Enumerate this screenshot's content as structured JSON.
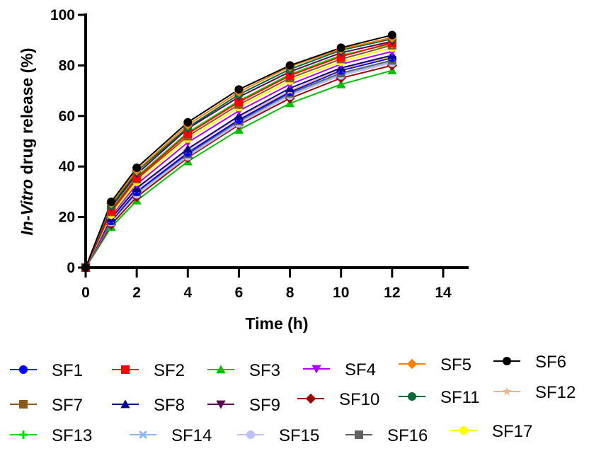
{
  "chart_data": {
    "type": "line",
    "title": "",
    "xlabel": "Time (h)",
    "ylabel_italic": "In-Vitro",
    "ylabel_rest": " drug release (%)",
    "ylabel": "In-Vitro drug release (%)",
    "x": [
      0,
      1,
      2,
      4,
      6,
      8,
      10,
      12
    ],
    "xlim": [
      0,
      15
    ],
    "ylim": [
      0,
      100
    ],
    "xticks": [
      0,
      2,
      4,
      6,
      8,
      10,
      12,
      14
    ],
    "yticks": [
      0,
      20,
      40,
      60,
      80,
      100
    ],
    "grid": false,
    "legend_position": "bottom",
    "series": [
      {
        "name": "SF1",
        "color": "#0000ff",
        "marker": "circle",
        "values": [
          0,
          18.5,
          30,
          45.5,
          58.5,
          69.5,
          78,
          83
        ]
      },
      {
        "name": "SF2",
        "color": "#ff0000",
        "marker": "square",
        "values": [
          0,
          22.5,
          35.5,
          53,
          65.5,
          76,
          83.5,
          89
        ]
      },
      {
        "name": "SF3",
        "color": "#00c000",
        "marker": "triangle-up",
        "values": [
          0,
          16,
          26.5,
          42,
          54.5,
          65,
          72.5,
          78
        ]
      },
      {
        "name": "SF4",
        "color": "#b000ff",
        "marker": "triangle-down",
        "values": [
          0,
          20.5,
          33,
          49.5,
          62,
          72.5,
          80.5,
          85.5
        ]
      },
      {
        "name": "SF5",
        "color": "#ff8000",
        "marker": "diamond",
        "values": [
          0,
          25.5,
          38.5,
          56.5,
          69.5,
          79.5,
          86.5,
          91
        ]
      },
      {
        "name": "SF6",
        "color": "#000000",
        "marker": "circle",
        "values": [
          0,
          26,
          39.5,
          57.5,
          70.5,
          80,
          87,
          92
        ]
      },
      {
        "name": "SF7",
        "color": "#8b5a1a",
        "marker": "square",
        "values": [
          0,
          22,
          35,
          52,
          64.5,
          75,
          82.5,
          88
        ]
      },
      {
        "name": "SF8",
        "color": "#00008b",
        "marker": "triangle-up",
        "values": [
          0,
          19.5,
          31.5,
          47,
          60,
          71,
          79,
          84
        ]
      },
      {
        "name": "SF9",
        "color": "#5a0050",
        "marker": "triangle-down",
        "values": [
          0,
          24,
          37,
          55,
          67.5,
          77.5,
          85,
          89.5
        ]
      },
      {
        "name": "SF10",
        "color": "#a00000",
        "marker": "diamond",
        "values": [
          0,
          17,
          28,
          43.5,
          56.5,
          67,
          75,
          80
        ]
      },
      {
        "name": "SF11",
        "color": "#006a3a",
        "marker": "circle",
        "values": [
          0,
          24.5,
          38,
          55.5,
          68.5,
          78.5,
          86,
          90.5
        ]
      },
      {
        "name": "SF12",
        "color": "#f0b48c",
        "marker": "star",
        "values": [
          0,
          19,
          31,
          46.5,
          59.5,
          70,
          78.5,
          83.5
        ]
      },
      {
        "name": "SF13",
        "color": "#00e000",
        "marker": "plus",
        "values": [
          0,
          23,
          36,
          53.5,
          66,
          76.5,
          84,
          88.5
        ]
      },
      {
        "name": "SF14",
        "color": "#90b8f0",
        "marker": "cross",
        "values": [
          0,
          18,
          29.5,
          44.5,
          57.5,
          68.5,
          76.5,
          81.5
        ]
      },
      {
        "name": "SF15",
        "color": "#c0c0f8",
        "marker": "circle",
        "values": [
          0,
          18,
          29,
          44,
          57,
          68,
          76,
          81
        ]
      },
      {
        "name": "SF16",
        "color": "#606060",
        "marker": "square",
        "values": [
          0,
          18.5,
          30,
          45,
          58,
          69,
          77,
          82
        ]
      },
      {
        "name": "SF17",
        "color": "#ffff00",
        "marker": "circle",
        "values": [
          0,
          21,
          34,
          51,
          63.5,
          74,
          81.5,
          87
        ]
      }
    ]
  }
}
